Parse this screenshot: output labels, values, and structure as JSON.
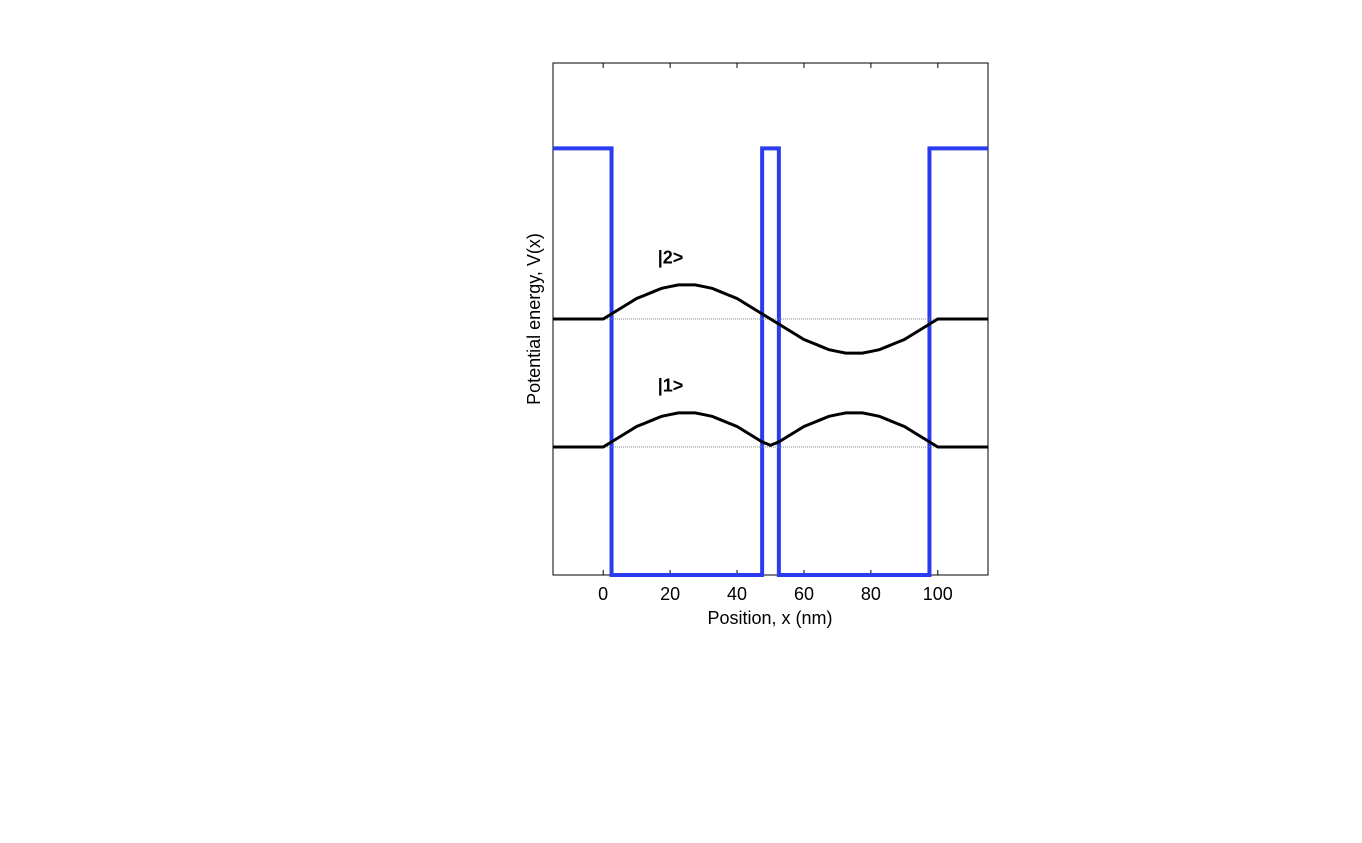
{
  "chart_data": {
    "type": "line",
    "xlabel": "Position, x (nm)",
    "ylabel": "Potential energy, V(x)",
    "xlim": [
      -15,
      115
    ],
    "xticks": [
      0,
      20,
      40,
      60,
      80,
      100
    ],
    "ylim": [
      0,
      6
    ],
    "series": [
      {
        "color": "#2b3cf0",
        "x": [
          -15,
          2.5,
          2.5,
          47.5,
          47.5,
          52.5,
          52.5,
          97.5,
          97.5,
          115
        ],
        "values": [
          5,
          5,
          0,
          0,
          5,
          5,
          0,
          0,
          5,
          5
        ]
      },
      {
        "name": "|1>",
        "color": "#000000",
        "energy": 1.5,
        "x": [
          -15,
          -12.5,
          -10,
          -7.5,
          -5,
          -2.5,
          0,
          2.5,
          5,
          7.5,
          10,
          12.5,
          15,
          17.5,
          20,
          22.5,
          25,
          27.5,
          30,
          32.5,
          35,
          37.5,
          40,
          42.5,
          45,
          47.5,
          50,
          52.5,
          55,
          57.5,
          60,
          62.5,
          65,
          67.5,
          70,
          72.5,
          75,
          77.5,
          80,
          82.5,
          85,
          87.5,
          90,
          92.5,
          95,
          97.5,
          100,
          102.5,
          105,
          107.5,
          110,
          112.5,
          115
        ],
        "values": [
          1.5,
          1.5,
          1.5,
          1.5,
          1.5,
          1.5,
          1.5,
          1.56,
          1.62,
          1.68,
          1.74,
          1.78,
          1.82,
          1.86,
          1.88,
          1.9,
          1.9,
          1.9,
          1.88,
          1.86,
          1.82,
          1.78,
          1.74,
          1.68,
          1.62,
          1.56,
          1.52,
          1.56,
          1.62,
          1.68,
          1.74,
          1.78,
          1.82,
          1.86,
          1.88,
          1.9,
          1.9,
          1.9,
          1.88,
          1.86,
          1.82,
          1.78,
          1.74,
          1.68,
          1.62,
          1.56,
          1.5,
          1.5,
          1.5,
          1.5,
          1.5,
          1.5,
          1.5
        ]
      },
      {
        "name": "|2>",
        "color": "#000000",
        "energy": 3,
        "x": [
          -15,
          -12.5,
          -10,
          -7.5,
          -5,
          -2.5,
          0,
          2.5,
          5,
          7.5,
          10,
          12.5,
          15,
          17.5,
          20,
          22.5,
          25,
          27.5,
          30,
          32.5,
          35,
          37.5,
          40,
          42.5,
          45,
          47.5,
          50,
          52.5,
          55,
          57.5,
          60,
          62.5,
          65,
          67.5,
          70,
          72.5,
          75,
          77.5,
          80,
          82.5,
          85,
          87.5,
          90,
          92.5,
          95,
          97.5,
          100,
          102.5,
          105,
          107.5,
          110,
          112.5,
          115
        ],
        "values": [
          3,
          3,
          3,
          3,
          3,
          3,
          3,
          3.06,
          3.12,
          3.18,
          3.24,
          3.28,
          3.32,
          3.36,
          3.38,
          3.4,
          3.4,
          3.4,
          3.38,
          3.36,
          3.32,
          3.28,
          3.24,
          3.18,
          3.12,
          3.06,
          3,
          2.94,
          2.88,
          2.82,
          2.76,
          2.72,
          2.68,
          2.64,
          2.62,
          2.6,
          2.6,
          2.6,
          2.62,
          2.64,
          2.68,
          2.72,
          2.76,
          2.82,
          2.88,
          2.94,
          3,
          3,
          3,
          3,
          3,
          3,
          3
        ]
      }
    ]
  }
}
